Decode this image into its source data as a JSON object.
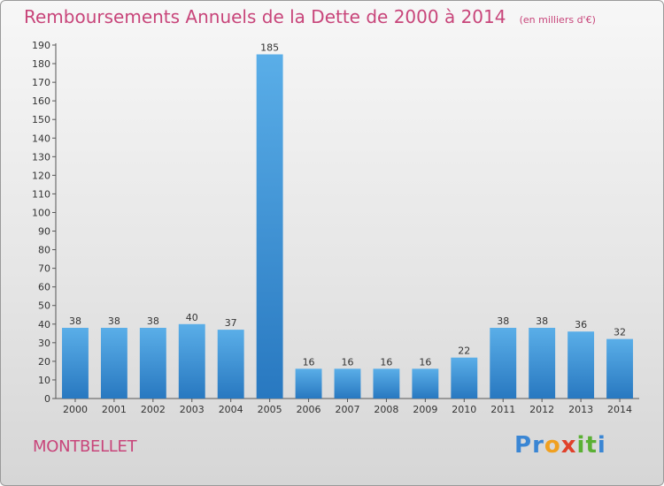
{
  "header": {
    "title": "Remboursements Annuels de la Dette de 2000 à 2014",
    "unit_note": "(en milliers d'€)"
  },
  "footer": {
    "commune": "MONTBELLET",
    "brand_letters": [
      {
        "ch": "P",
        "color": "#3a86d4"
      },
      {
        "ch": "r",
        "color": "#3a86d4"
      },
      {
        "ch": "o",
        "color": "#f0a020"
      },
      {
        "ch": "x",
        "color": "#e0402a"
      },
      {
        "ch": "i",
        "color": "#5ab034"
      },
      {
        "ch": "t",
        "color": "#5ab034"
      },
      {
        "ch": "i",
        "color": "#3a86d4"
      }
    ]
  },
  "chart_data": {
    "type": "bar",
    "categories": [
      "2000",
      "2001",
      "2002",
      "2003",
      "2004",
      "2005",
      "2006",
      "2007",
      "2008",
      "2009",
      "2010",
      "2011",
      "2012",
      "2013",
      "2014"
    ],
    "values": [
      38,
      38,
      38,
      40,
      37,
      185,
      16,
      16,
      16,
      16,
      22,
      38,
      38,
      36,
      32
    ],
    "title": "Remboursements Annuels de la Dette de 2000 à 2014",
    "xlabel": "",
    "ylabel": "",
    "ylim": [
      0,
      190
    ],
    "ytick_step": 10,
    "grid": false,
    "bar_color_top": "#5aaee8",
    "bar_color_bottom": "#2878c0"
  }
}
